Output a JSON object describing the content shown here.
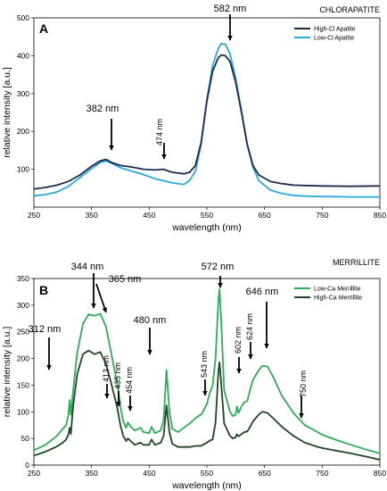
{
  "chart_data": [
    {
      "type": "line",
      "panel_letter": "A",
      "title": "CHLORAPATITE",
      "xlabel": "wavelength (nm)",
      "ylabel": "relative intensity [a.u.]",
      "xlim": [
        250,
        850
      ],
      "ylim": [
        0,
        500
      ],
      "xticks": [
        250,
        350,
        450,
        550,
        650,
        750,
        850
      ],
      "yticks": [
        100,
        200,
        300,
        400,
        500
      ],
      "grid": false,
      "legend_position": "top-right",
      "colors": {
        "High-Cl Apatite": "#1b2a4e",
        "Low-Cl Apatite": "#29a8e0"
      },
      "series": [
        {
          "name": "High-Cl Apatite",
          "x": [
            250,
            270,
            290,
            310,
            330,
            350,
            365,
            375,
            385,
            400,
            420,
            440,
            460,
            474,
            490,
            510,
            520,
            530,
            540,
            550,
            560,
            570,
            575,
            582,
            590,
            600,
            610,
            620,
            630,
            640,
            660,
            680,
            700,
            720,
            750,
            800,
            850
          ],
          "y": [
            48,
            52,
            58,
            68,
            85,
            108,
            122,
            126,
            118,
            110,
            106,
            100,
            98,
            100,
            92,
            88,
            92,
            110,
            170,
            280,
            360,
            395,
            402,
            400,
            385,
            330,
            250,
            165,
            110,
            85,
            68,
            62,
            58,
            57,
            56,
            55,
            56
          ]
        },
        {
          "name": "Low-Cl Apatite",
          "x": [
            250,
            270,
            290,
            310,
            330,
            350,
            365,
            375,
            385,
            400,
            420,
            440,
            460,
            474,
            490,
            510,
            520,
            530,
            540,
            550,
            560,
            570,
            575,
            582,
            590,
            600,
            610,
            620,
            630,
            640,
            660,
            680,
            700,
            720,
            750,
            800,
            850
          ],
          "y": [
            30,
            33,
            40,
            55,
            78,
            102,
            118,
            122,
            115,
            104,
            95,
            86,
            75,
            70,
            64,
            60,
            70,
            95,
            165,
            285,
            375,
            420,
            432,
            430,
            405,
            340,
            255,
            165,
            105,
            70,
            45,
            36,
            31,
            29,
            28,
            27,
            27
          ]
        }
      ],
      "annotations": [
        {
          "text": "582 nm",
          "x": 582
        },
        {
          "text": "382 nm",
          "x": 382
        },
        {
          "text": "474 nm",
          "x": 474
        }
      ]
    },
    {
      "type": "line",
      "panel_letter": "B",
      "title": "MERRILLITE",
      "xlabel": "wavelength (nm)",
      "ylabel": "relative intensity [a.u.]",
      "xlim": [
        250,
        850
      ],
      "ylim": [
        0,
        350
      ],
      "xticks": [
        250,
        350,
        450,
        550,
        650,
        750,
        850
      ],
      "yticks": [
        0,
        50,
        100,
        150,
        200,
        250,
        300,
        350
      ],
      "grid": false,
      "legend_position": "top-right",
      "colors": {
        "Low-Ca Merrillite": "#2bac55",
        "High-Ca Merrillite": "#1f4524"
      },
      "series": [
        {
          "name": "Low-Ca Merrillite",
          "x": [
            250,
            270,
            290,
            300,
            306,
            310,
            312,
            314,
            318,
            325,
            335,
            345,
            355,
            365,
            375,
            385,
            395,
            400,
            405,
            410,
            413,
            418,
            425,
            435,
            440,
            450,
            454,
            460,
            470,
            475,
            480,
            485,
            490,
            500,
            510,
            520,
            530,
            540,
            543,
            550,
            555,
            560,
            565,
            570,
            572,
            575,
            580,
            590,
            595,
            600,
            602,
            605,
            610,
            615,
            620,
            624,
            630,
            640,
            646,
            655,
            665,
            680,
            700,
            720,
            740,
            750,
            760,
            780,
            800,
            830,
            850
          ],
          "y": [
            28,
            38,
            55,
            68,
            75,
            95,
            122,
            95,
            140,
            210,
            265,
            283,
            280,
            284,
            260,
            205,
            150,
            110,
            82,
            70,
            80,
            72,
            65,
            70,
            62,
            60,
            72,
            60,
            65,
            85,
            178,
            100,
            68,
            62,
            70,
            78,
            88,
            95,
            100,
            115,
            135,
            150,
            200,
            310,
            330,
            265,
            140,
            100,
            92,
            95,
            110,
            98,
            110,
            118,
            120,
            138,
            160,
            178,
            186,
            185,
            165,
            130,
            98,
            75,
            63,
            57,
            53,
            45,
            38,
            28,
            22
          ]
        },
        {
          "name": "High-Ca Merrillite",
          "x": [
            250,
            270,
            290,
            300,
            306,
            310,
            312,
            314,
            318,
            325,
            335,
            345,
            355,
            365,
            375,
            385,
            395,
            400,
            405,
            410,
            413,
            418,
            425,
            435,
            440,
            450,
            454,
            460,
            470,
            475,
            480,
            485,
            490,
            500,
            510,
            520,
            530,
            540,
            543,
            550,
            555,
            560,
            565,
            570,
            572,
            575,
            580,
            590,
            595,
            600,
            602,
            605,
            610,
            615,
            620,
            624,
            630,
            640,
            646,
            655,
            665,
            680,
            700,
            720,
            740,
            750,
            760,
            780,
            800,
            830,
            850
          ],
          "y": [
            18,
            25,
            35,
            42,
            48,
            58,
            70,
            58,
            110,
            170,
            208,
            215,
            208,
            212,
            190,
            150,
            105,
            75,
            55,
            45,
            50,
            45,
            38,
            42,
            38,
            38,
            48,
            38,
            42,
            55,
            112,
            62,
            40,
            34,
            34,
            34,
            36,
            36,
            38,
            42,
            46,
            48,
            80,
            175,
            193,
            150,
            78,
            55,
            50,
            52,
            58,
            54,
            58,
            62,
            63,
            70,
            82,
            95,
            100,
            98,
            88,
            72,
            55,
            42,
            35,
            32,
            30,
            26,
            22,
            15,
            10
          ]
        }
      ],
      "annotations": [
        {
          "text": "344 nm",
          "x": 344
        },
        {
          "text": "365 nm",
          "x": 365
        },
        {
          "text": "572 nm",
          "x": 572
        },
        {
          "text": "646 nm",
          "x": 646
        },
        {
          "text": "312 nm",
          "x": 312
        },
        {
          "text": "480 nm",
          "x": 480
        },
        {
          "text": "413 nm",
          "x": 413
        },
        {
          "text": "435 nm",
          "x": 435
        },
        {
          "text": "454 nm",
          "x": 454
        },
        {
          "text": "543 nm",
          "x": 543
        },
        {
          "text": "602 nm",
          "x": 602
        },
        {
          "text": "624 nm",
          "x": 624
        },
        {
          "text": "750 nm",
          "x": 750
        }
      ]
    }
  ]
}
